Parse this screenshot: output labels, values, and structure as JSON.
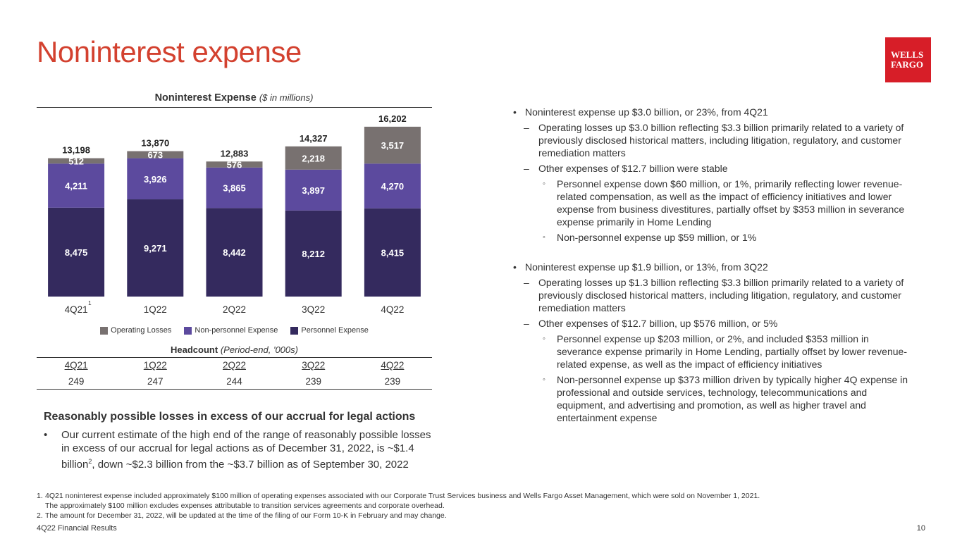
{
  "page": {
    "title": "Noninterest expense",
    "logo_line1": "WELLS",
    "logo_line2": "FARGO",
    "footer_left": "4Q22 Financial Results",
    "page_number": "10"
  },
  "chart_data": {
    "type": "bar",
    "stacked": true,
    "title": "Noninterest Expense",
    "title_unit": "($ in millions)",
    "categories": [
      "4Q21",
      "1Q22",
      "2Q22",
      "3Q22",
      "4Q22"
    ],
    "category_superscripts": [
      "1",
      "",
      "",
      "",
      ""
    ],
    "series": [
      {
        "name": "Personnel Expense",
        "color": "#342a5e",
        "values": [
          8475,
          9271,
          8442,
          8212,
          8415
        ]
      },
      {
        "name": "Non-personnel Expense",
        "color": "#5c4a9e",
        "values": [
          4211,
          3926,
          3865,
          3897,
          4270
        ]
      },
      {
        "name": "Operating Losses",
        "color": "#787170",
        "values": [
          512,
          673,
          576,
          2218,
          3517
        ]
      }
    ],
    "totals": [
      13198,
      13870,
      12883,
      14327,
      16202
    ],
    "legend_order": [
      "Operating Losses",
      "Non-personnel Expense",
      "Personnel Expense"
    ],
    "legend_position": "bottom",
    "ylim": [
      0,
      17000
    ],
    "grid": false
  },
  "headcount": {
    "title": "Headcount",
    "title_unit": "(Period-end, '000s)",
    "headers": [
      "4Q21",
      "1Q22",
      "2Q22",
      "3Q22",
      "4Q22"
    ],
    "values": [
      "249",
      "247",
      "244",
      "239",
      "239"
    ]
  },
  "legal": {
    "title": "Reasonably possible losses in excess of our accrual for legal actions",
    "bullet_part1": "Our current estimate of the high end of the range of reasonably possible losses in excess of our accrual for legal actions as of December 31, 2022, is ~$1.4 billion",
    "bullet_sup": "2",
    "bullet_part2": ", down ~$2.3 billion from the ~$3.7 billion as of September 30, 2022"
  },
  "commentary": [
    {
      "level": 1,
      "text": "Noninterest expense up $3.0 billion, or 23%, from 4Q21"
    },
    {
      "level": 2,
      "text": "Operating losses up $3.0 billion reflecting $3.3 billion primarily related to a variety of previously disclosed historical matters, including litigation, regulatory, and customer remediation matters"
    },
    {
      "level": 2,
      "text": "Other expenses of $12.7 billion were stable"
    },
    {
      "level": 3,
      "text": "Personnel expense down $60 million, or 1%, primarily reflecting lower revenue-related compensation, as well as the impact of efficiency initiatives and lower expense from business divestitures, partially offset by $353 million in severance expense primarily in Home Lending"
    },
    {
      "level": 3,
      "text": "Non-personnel expense up $59 million, or 1%"
    },
    {
      "level": 1,
      "text": "Noninterest expense up $1.9 billion, or 13%, from 3Q22"
    },
    {
      "level": 2,
      "text": "Operating losses up $1.3 billion reflecting $3.3 billion primarily related to a variety of previously disclosed historical matters, including litigation, regulatory, and customer remediation matters"
    },
    {
      "level": 2,
      "text": "Other expenses of $12.7 billion, up $576 million, or 5%"
    },
    {
      "level": 3,
      "text": "Personnel expense up $203 million, or 2%, and included $353 million in severance expense primarily in Home Lending, partially offset by lower revenue-related expense, as well as the impact of efficiency initiatives"
    },
    {
      "level": 3,
      "text": "Non-personnel expense up $373 million driven by typically higher 4Q expense in professional and outside services, technology, telecommunications and equipment, and advertising and promotion, as well as higher travel and entertainment expense"
    }
  ],
  "footnotes": [
    {
      "num": "1.",
      "line1": "4Q21 noninterest expense included approximately $100 million of operating expenses associated with our Corporate Trust Services business and Wells Fargo Asset Management, which were sold on November 1, 2021.",
      "line2": "The approximately $100 million excludes expenses attributable to transition services agreements and corporate overhead."
    },
    {
      "num": "2.",
      "line1": "The amount for December 31, 2022, will be updated at the time of the filing of our Form 10-K in February and may change."
    }
  ]
}
